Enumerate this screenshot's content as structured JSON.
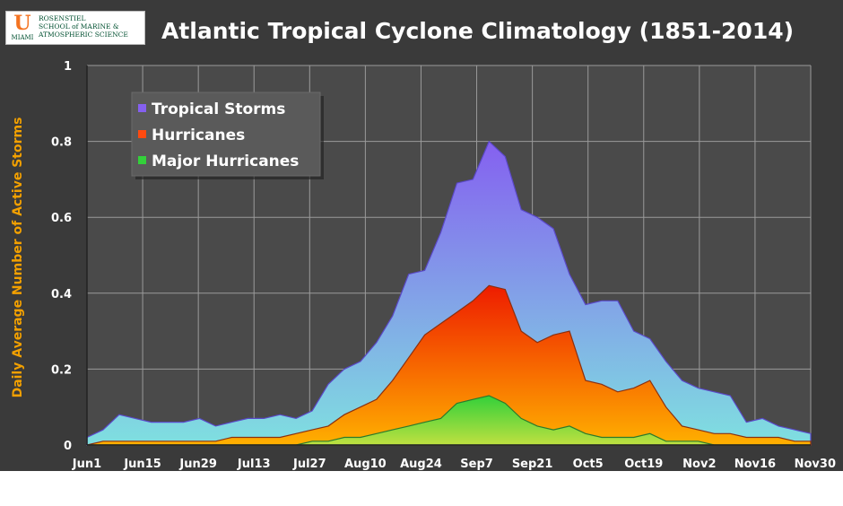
{
  "logo": {
    "mark": "U",
    "mark_caption": "MIAMI",
    "lines": [
      "ROSENSTIEL",
      "SCHOOL of MARINE &",
      "ATMOSPHERIC SCIENCE"
    ]
  },
  "colors": {
    "background": "#3a3a3a",
    "plot_background": "#4a4a4a",
    "grid": "#9a9a9a",
    "tropical_storms_top": "#8560f0",
    "tropical_storms_bottom": "#7fe0e0",
    "hurricanes_top": "#ee1c00",
    "hurricanes_bottom": "#ffb000",
    "major_hurricanes_top": "#33d03a",
    "major_hurricanes_bottom": "#bfe040",
    "ylabel": "#f2a000"
  },
  "chart_data": {
    "type": "area",
    "title": "Atlantic Tropical Cyclone Climatology (1851-2014)",
    "ylabel": "Daily Average Number of Active Storms",
    "xlabel": "",
    "x_ticks": [
      "Jun1",
      "Jun15",
      "Jun29",
      "Jul13",
      "Jul27",
      "Aug10",
      "Aug24",
      "Sep7",
      "Sep21",
      "Oct5",
      "Oct19",
      "Nov2",
      "Nov16",
      "Nov30"
    ],
    "y_ticks": [
      "0",
      "0.2",
      "0.4",
      "0.6",
      "0.8",
      "1"
    ],
    "ylim": [
      0,
      1
    ],
    "grid": true,
    "legend_position": "top-left",
    "x": [
      "Jun1",
      "Jun5",
      "Jun9",
      "Jun13",
      "Jun17",
      "Jun21",
      "Jun25",
      "Jun29",
      "Jul3",
      "Jul7",
      "Jul11",
      "Jul15",
      "Jul19",
      "Jul23",
      "Jul27",
      "Jul31",
      "Aug4",
      "Aug8",
      "Aug12",
      "Aug16",
      "Aug20",
      "Aug24",
      "Aug28",
      "Sep1",
      "Sep5",
      "Sep9",
      "Sep13",
      "Sep17",
      "Sep21",
      "Sep25",
      "Sep29",
      "Oct3",
      "Oct7",
      "Oct11",
      "Oct15",
      "Oct19",
      "Oct23",
      "Oct27",
      "Oct31",
      "Nov4",
      "Nov8",
      "Nov12",
      "Nov16",
      "Nov20",
      "Nov24",
      "Nov30"
    ],
    "series": [
      {
        "name": "Tropical Storms",
        "values": [
          0.02,
          0.04,
          0.08,
          0.07,
          0.06,
          0.06,
          0.06,
          0.07,
          0.05,
          0.06,
          0.07,
          0.07,
          0.08,
          0.07,
          0.09,
          0.16,
          0.2,
          0.22,
          0.27,
          0.34,
          0.45,
          0.46,
          0.56,
          0.69,
          0.7,
          0.8,
          0.76,
          0.62,
          0.6,
          0.57,
          0.45,
          0.37,
          0.38,
          0.38,
          0.3,
          0.28,
          0.22,
          0.17,
          0.15,
          0.14,
          0.13,
          0.06,
          0.07,
          0.05,
          0.04,
          0.03
        ]
      },
      {
        "name": "Hurricanes",
        "values": [
          0.0,
          0.01,
          0.01,
          0.01,
          0.01,
          0.01,
          0.01,
          0.01,
          0.01,
          0.02,
          0.02,
          0.02,
          0.02,
          0.03,
          0.04,
          0.05,
          0.08,
          0.1,
          0.12,
          0.17,
          0.23,
          0.29,
          0.32,
          0.35,
          0.38,
          0.42,
          0.41,
          0.3,
          0.27,
          0.29,
          0.3,
          0.17,
          0.16,
          0.14,
          0.15,
          0.17,
          0.1,
          0.05,
          0.04,
          0.03,
          0.03,
          0.02,
          0.02,
          0.02,
          0.01,
          0.01
        ]
      },
      {
        "name": "Major Hurricanes",
        "values": [
          0.0,
          0.0,
          0.0,
          0.0,
          0.0,
          0.0,
          0.0,
          0.0,
          0.0,
          0.0,
          0.0,
          0.0,
          0.0,
          0.0,
          0.01,
          0.01,
          0.02,
          0.02,
          0.03,
          0.04,
          0.05,
          0.06,
          0.07,
          0.11,
          0.12,
          0.13,
          0.11,
          0.07,
          0.05,
          0.04,
          0.05,
          0.03,
          0.02,
          0.02,
          0.02,
          0.03,
          0.01,
          0.01,
          0.01,
          0.0,
          0.0,
          0.0,
          0.0,
          0.0,
          0.0,
          0.0
        ]
      }
    ]
  }
}
